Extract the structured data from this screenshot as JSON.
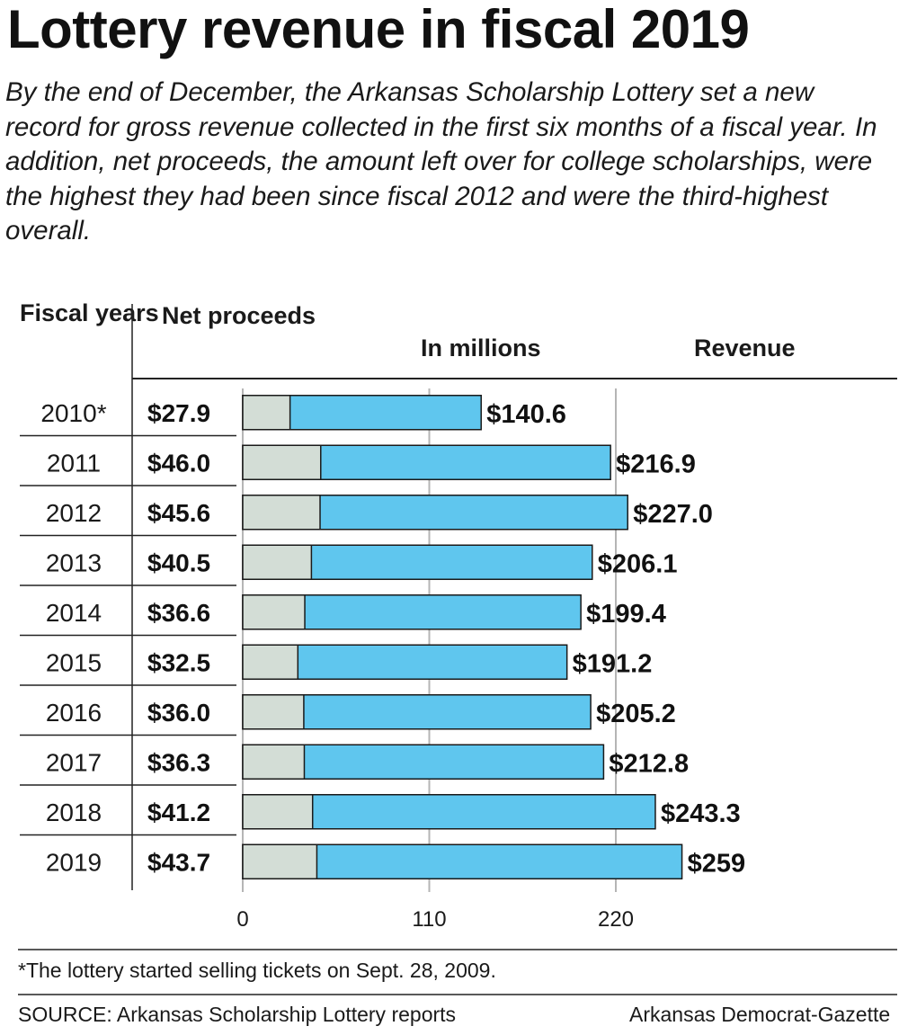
{
  "chart_data": {
    "type": "bar",
    "title": "Lottery revenue in fiscal 2019",
    "subtitle": "By the end of December, the Arkansas Scholarship Lottery set a new record for gross revenue collected in the first six months of a fiscal year. In addition, net proceeds, the amount left over for college scholarships, were the highest they had been since fiscal 2012 and were the third-highest overall.",
    "column_headers": {
      "years": "Fiscal years",
      "net": "Net proceeds",
      "units": "In millions",
      "revenue": "Revenue"
    },
    "categories": [
      "2010*",
      "2011",
      "2012",
      "2013",
      "2014",
      "2015",
      "2016",
      "2017",
      "2018",
      "2019"
    ],
    "series": [
      {
        "name": "Net proceeds",
        "values": [
          27.9,
          46.0,
          45.6,
          40.5,
          36.6,
          32.5,
          36.0,
          36.3,
          41.2,
          43.7
        ],
        "labels": [
          "$27.9",
          "$46.0",
          "$45.6",
          "$40.5",
          "$36.6",
          "$32.5",
          "$36.0",
          "$36.3",
          "$41.2",
          "$43.7"
        ],
        "color": "#d3ddd6"
      },
      {
        "name": "Revenue",
        "values": [
          140.6,
          216.9,
          227.0,
          206.1,
          199.4,
          191.2,
          205.2,
          212.8,
          243.3,
          259
        ],
        "labels": [
          "$140.6",
          "$216.9",
          "$227.0",
          "$206.1",
          "$199.4",
          "$191.2",
          "$205.2",
          "$212.8",
          "$243.3",
          "$259"
        ],
        "color": "#5fc6ee"
      }
    ],
    "x_ticks": [
      0,
      110,
      220
    ],
    "xlim": [
      0,
      260
    ],
    "footnote": "*The lottery started selling tickets on Sept. 28, 2009.",
    "source": "SOURCE: Arkansas Scholarship Lottery reports",
    "credit": "Arkansas Democrat-Gazette"
  }
}
